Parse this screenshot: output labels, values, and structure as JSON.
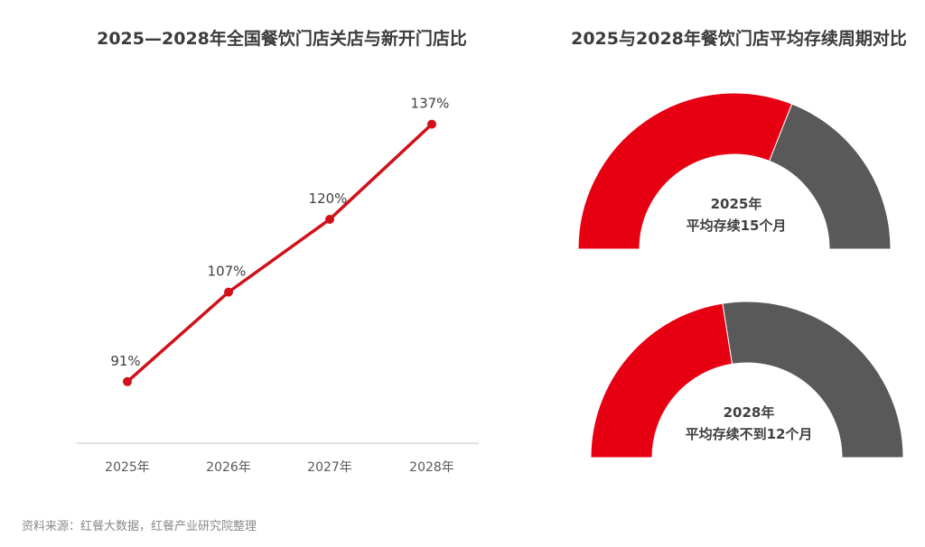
{
  "chart_data": [
    {
      "type": "line",
      "title": "2025—2028年全国餐饮门店关店与新开门店比",
      "categories": [
        "2025年",
        "2026年",
        "2027年",
        "2028年"
      ],
      "values": [
        91,
        107,
        120,
        137
      ],
      "data_labels": [
        "91%",
        "107%",
        "120%",
        "137%"
      ],
      "ylim": [
        80,
        140
      ],
      "grid": false,
      "color": "#d0111b"
    },
    {
      "type": "pie",
      "subtype": "half-donut",
      "title": "2025与2028年餐饮门店平均存续周期对比",
      "gauges": [
        {
          "label_year": "2025年",
          "label_text": "平均存续15个月",
          "red_fraction": 0.62
        },
        {
          "label_year": "2028年",
          "label_text": "平均存续不到12个月",
          "red_fraction": 0.45
        }
      ],
      "colors": {
        "primary": "#e60012",
        "secondary": "#595959"
      }
    }
  ],
  "source": "资料来源：红餐大数据，红餐产业研究院整理",
  "watermark": "红餐产业研究院"
}
